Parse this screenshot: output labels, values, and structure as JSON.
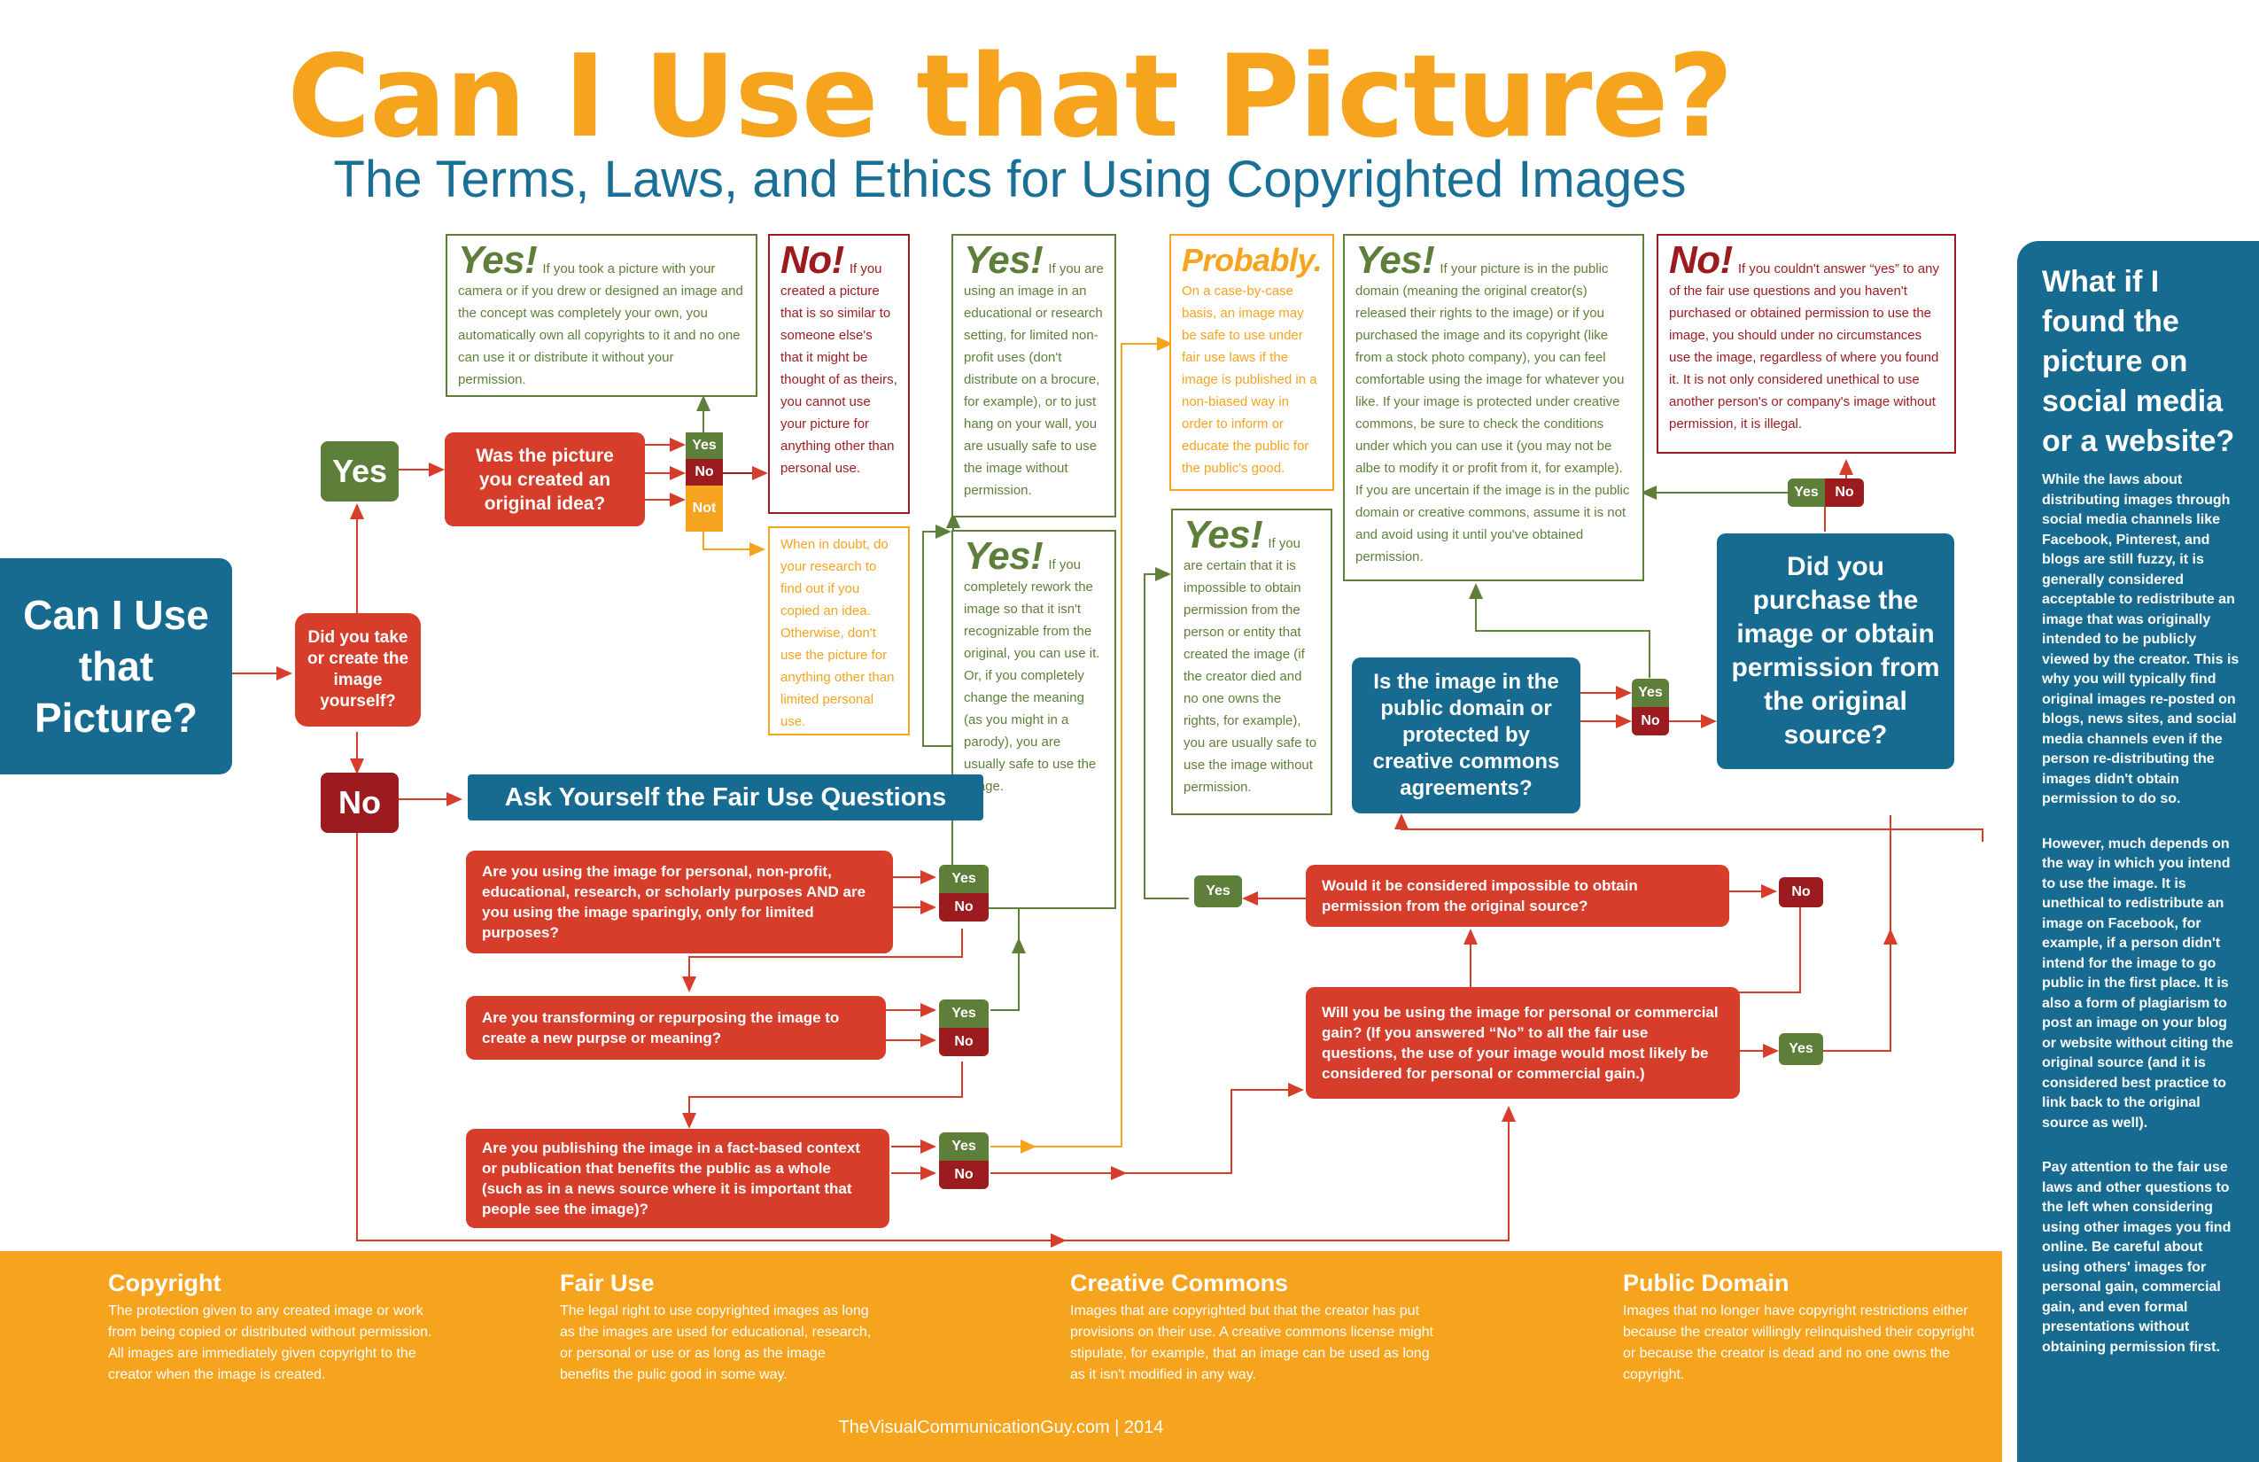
{
  "title": "Can I Use that Picture?",
  "subtitle": "The Terms, Laws, and Ethics for Using Copyrighted Images",
  "start": "Can I Use that Picture?",
  "q_take": "Did you take or create the image yourself?",
  "yes": "Yes",
  "no": "No",
  "not": "Not",
  "q_original": "Was the picture you created an original idea?",
  "fair_use_header": "Ask Yourself the Fair Use Questions",
  "fq1": "Are you using the image for personal, non-profit, educational, research, or scholarly purposes AND are you using the image sparingly, only for limited purposes?",
  "fq2": "Are you transforming or repurposing the image to create a new purpse or meaning?",
  "fq3": "Are you publishing the image in a fact-based context or publication that benefits the public as a whole (such as in a news source where it is important that people see the image)?",
  "q_impossible": "Would it be considered impossible to obtain permission from the original source?",
  "q_commercial": "Will you be using the image for personal or commercial gain? (If you answered “No” to all the fair use questions, the use of your image would most likely be considered for personal or commercial gain.)",
  "q_public_domain": "Is the image in the public domain or protected by creative commons agreements?",
  "q_purchase": "Did you purchase the image or obtain permission from the original source?",
  "notes": {
    "yes_own": {
      "big": "Yes!",
      "text": "If you took a picture with your camera or if you drew or designed an image and the concept was completely your own, you automatically own all copyrights to it and no one can use it or distribute it without your permission."
    },
    "no_similar": {
      "big": "No!",
      "text": "If you created a picture that is so similar to someone else's that it might be thought of as theirs, you cannot use your picture for anything other than personal use."
    },
    "doubt": {
      "text": "When in doubt, do your research to find out if you copied an idea. Otherwise, don't use the picture for anything other than limited personal use."
    },
    "yes_edu": {
      "big": "Yes!",
      "text": "If you are using an image in an educational or research setting, for limited non-profit uses (don't distribute on a brocure, for example), or to just hang on your wall, you are usually safe to use the image without permission."
    },
    "yes_rework": {
      "big": "Yes!",
      "text1": "If you completely rework the image so that it isn't recognizable from the original, you can use it. Or, if you completely",
      "text2": "change the meaning (as you might in a parody), you are usually safe to use the image."
    },
    "probably": {
      "big": "Probably.",
      "text": "On a case-by-case basis, an image may be safe to use under fair use laws if the image is published in a non-biased way in order to inform or educate the public for the public's good."
    },
    "yes_impossible": {
      "big": "Yes!",
      "text": "If you are certain that it is impossible to obtain permission from the person or entity that created the image (if the creator died and no one owns the rights, for example), you are usually safe to use the image without permission."
    },
    "yes_public": {
      "big": "Yes!",
      "text": "If your picture is in the public domain (meaning the original creator(s) released their rights to the image) or if you purchased the image and its copyright (like from a stock photo company), you can feel comfortable using the image for whatever you like. If your image is protected under creative commons, be sure to check the conditions under which you can use it (you may not be albe to modify it or profit from it, for example). If you are uncertain if the image is in the public domain or creative commons, assume it is not and avoid using it until you've obtained permission."
    },
    "no_final": {
      "big": "No!",
      "text": "If you couldn't answer “yes” to any of the fair use questions and you haven't purchased or obtained permission to use the image, you should under no circumstances use the image, regardless of where you found it. It is not only considered unethical to use another person's or company's image without permission, it is illegal."
    }
  },
  "footer": [
    {
      "heading": "Copyright",
      "text": "The protection given to any created image or work from being copied or distributed without permission. All images are immediately given copyright to the creator when the image is created."
    },
    {
      "heading": "Fair Use",
      "text": "The legal right to use copyrighted images as long as the images are used for educational, research, or personal or use or as long as the image benefits the pulic good in some way."
    },
    {
      "heading": "Creative Commons",
      "text": "Images that are copyrighted but that the creator has put provisions on their use. A creative commons license might stipulate, for example, that an image can be used as long as it isn't modified in any way."
    },
    {
      "heading": "Public Domain",
      "text": "Images that no longer have copyright restrictions either because the creator willingly relinquished their copyright or because the creator is dead and no one owns the copyright."
    }
  ],
  "credit": "TheVisualCommunicationGuy.com | 2014",
  "side": {
    "heading": "What if I found the picture on social media or a website?",
    "p1": "While the laws about distributing images through social media channels like Facebook, Pinterest, and blogs are still fuzzy, it is generally considered acceptable to redistribute an image that was originally intended to be publicly viewed by the creator. This is why you will typically find original images re-posted on blogs, news sites, and social media channels even if the person re-distributing the images didn't obtain permission to do so.",
    "p2": "However, much depends on the way in which you intend to use the image. It is unethical to redistribute an image on Facebook, for example, if a person didn't intend for the image to go public in the first place. It is also a form of plagiarism to post an image on your blog or website without citing the original source (and it is considered best practice to link back to the original source as well).",
    "p3": "Pay attention to the fair use laws and other questions to the left when considering using other images you find online. Be careful about using others' images for personal gain, commercial gain, and even formal presentations without obtaining permission first."
  },
  "colors": {
    "orange": "#f6a31e",
    "blue": "#176b91",
    "red": "#d63d2a",
    "dark_red": "#9b1b1f",
    "green": "#5e7f3a"
  }
}
